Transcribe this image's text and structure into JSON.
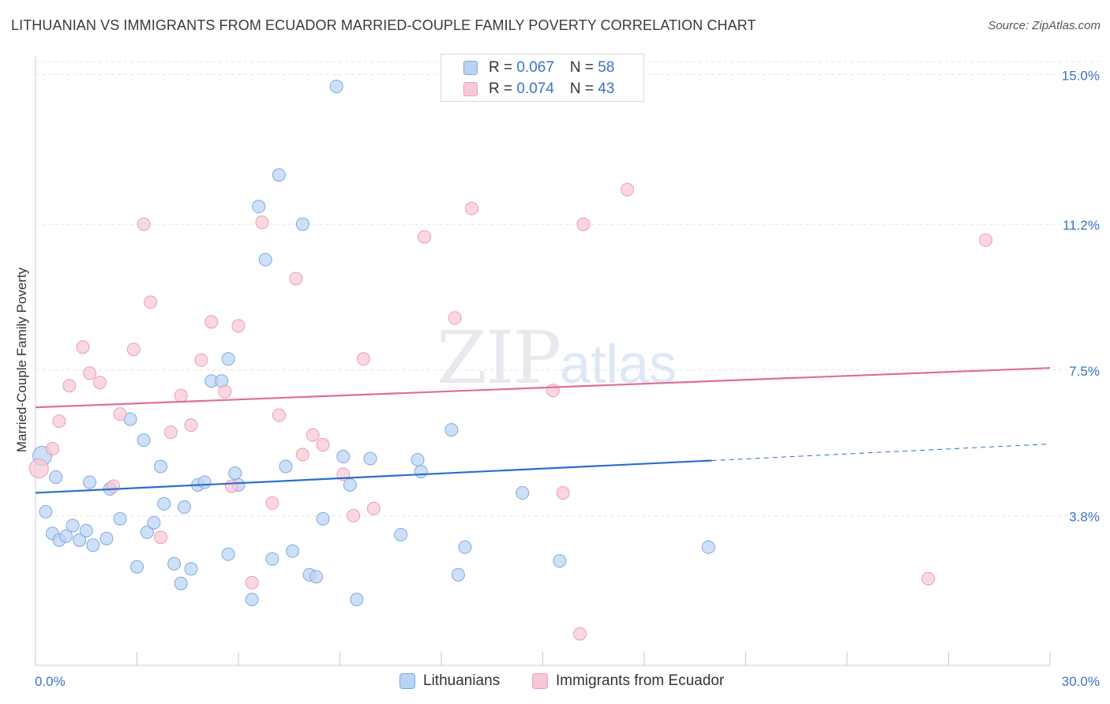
{
  "title": "LITHUANIAN VS IMMIGRANTS FROM ECUADOR MARRIED-COUPLE FAMILY POVERTY CORRELATION CHART",
  "source": "Source: ZipAtlas.com",
  "watermark": {
    "zip": "ZIP",
    "atlas": "atlas"
  },
  "legend": {
    "r_label": "R = ",
    "n_label": "N = ",
    "rows": [
      {
        "r": "0.067",
        "n": "58"
      },
      {
        "r": "0.074",
        "n": "43"
      }
    ]
  },
  "colors": {
    "blue_fill": "#b9d3f3",
    "blue_stroke": "#7fa9e0",
    "blue_line": "#2c6ecb",
    "pink_fill": "#f8c8d6",
    "pink_stroke": "#ee9bb4",
    "pink_line": "#e06e95",
    "tick_text": "#3b73c6",
    "grid": "#dfe3ea"
  },
  "chart_data": {
    "type": "scatter",
    "title": "LITHUANIAN VS IMMIGRANTS FROM ECUADOR MARRIED-COUPLE FAMILY POVERTY CORRELATION CHART",
    "xlabel": "",
    "ylabel": "Married-Couple Family Poverty",
    "xlim": [
      0,
      30
    ],
    "ylim": [
      0,
      15.5
    ],
    "x_tick_labels": [
      {
        "value": 0,
        "label": "0.0%"
      },
      {
        "value": 30,
        "label": "30.0%"
      }
    ],
    "y_tick_labels": [
      {
        "value": 3.8,
        "label": "3.8%"
      },
      {
        "value": 7.5,
        "label": "7.5%"
      },
      {
        "value": 11.2,
        "label": "11.2%"
      },
      {
        "value": 15.0,
        "label": "15.0%"
      }
    ],
    "x_minor_ticks": [
      0,
      3,
      6,
      9,
      12,
      15,
      18,
      21,
      24,
      27,
      30
    ],
    "series": [
      {
        "name": "Lithuanians",
        "color": "blue",
        "trend": {
          "x0": 0,
          "y0": 4.38,
          "x1": 20,
          "y1": 5.2,
          "dash_to_x": 30,
          "dash_to_y": 5.62
        },
        "points": [
          [
            0.2,
            5.32,
            22
          ],
          [
            0.3,
            3.9,
            11
          ],
          [
            0.5,
            3.35,
            9
          ],
          [
            0.7,
            3.18,
            8
          ],
          [
            0.9,
            3.28,
            8
          ],
          [
            1.1,
            3.55,
            8
          ],
          [
            1.3,
            3.18,
            8
          ],
          [
            1.5,
            3.42,
            8
          ],
          [
            1.7,
            3.05,
            8
          ],
          [
            1.6,
            4.65,
            8
          ],
          [
            2.2,
            4.48,
            8
          ],
          [
            2.1,
            3.22,
            8
          ],
          [
            2.5,
            3.72,
            8
          ],
          [
            2.8,
            6.25,
            8
          ],
          [
            3.0,
            2.5,
            8
          ],
          [
            3.2,
            5.72,
            8
          ],
          [
            3.3,
            3.38,
            8
          ],
          [
            3.5,
            3.62,
            8
          ],
          [
            3.7,
            5.05,
            8
          ],
          [
            3.8,
            4.1,
            8
          ],
          [
            4.1,
            2.58,
            8
          ],
          [
            4.3,
            2.08,
            8
          ],
          [
            4.4,
            4.02,
            8
          ],
          [
            4.6,
            2.45,
            8
          ],
          [
            4.8,
            4.58,
            8
          ],
          [
            5.0,
            4.65,
            8
          ],
          [
            5.2,
            7.22,
            8
          ],
          [
            5.5,
            7.22,
            8
          ],
          [
            5.7,
            7.78,
            8
          ],
          [
            5.7,
            2.82,
            8
          ],
          [
            5.9,
            4.88,
            8
          ],
          [
            6.0,
            4.58,
            8
          ],
          [
            6.4,
            1.67,
            8
          ],
          [
            6.6,
            11.65,
            8
          ],
          [
            6.8,
            10.3,
            8
          ],
          [
            7.0,
            2.7,
            8
          ],
          [
            7.2,
            12.45,
            8
          ],
          [
            7.4,
            5.05,
            8
          ],
          [
            7.6,
            2.9,
            8
          ],
          [
            7.9,
            11.2,
            8
          ],
          [
            8.1,
            2.3,
            8
          ],
          [
            8.3,
            2.25,
            8
          ],
          [
            8.5,
            3.72,
            8
          ],
          [
            8.9,
            14.7,
            8
          ],
          [
            9.1,
            5.3,
            8
          ],
          [
            9.3,
            4.58,
            8
          ],
          [
            9.5,
            1.67,
            8
          ],
          [
            9.9,
            5.25,
            8
          ],
          [
            10.8,
            3.32,
            8
          ],
          [
            11.3,
            5.22,
            8
          ],
          [
            11.4,
            4.92,
            8
          ],
          [
            12.3,
            5.98,
            8
          ],
          [
            12.5,
            2.3,
            8
          ],
          [
            12.7,
            3.0,
            8
          ],
          [
            14.4,
            4.38,
            8
          ],
          [
            15.5,
            2.65,
            8
          ],
          [
            19.9,
            3.0,
            8
          ],
          [
            0.6,
            4.78,
            8
          ]
        ]
      },
      {
        "name": "Immigrants from Ecuador",
        "color": "pink",
        "trend": {
          "x0": 0,
          "y0": 6.55,
          "x1": 30,
          "y1": 7.55
        },
        "points": [
          [
            0.1,
            5.0,
            22
          ],
          [
            0.5,
            5.5,
            8
          ],
          [
            0.7,
            6.2,
            8
          ],
          [
            1.0,
            7.1,
            8
          ],
          [
            1.4,
            8.08,
            8
          ],
          [
            1.6,
            7.42,
            8
          ],
          [
            1.9,
            7.18,
            8
          ],
          [
            2.3,
            4.55,
            8
          ],
          [
            2.5,
            6.38,
            8
          ],
          [
            2.9,
            8.02,
            8
          ],
          [
            3.2,
            11.2,
            8
          ],
          [
            3.4,
            9.22,
            8
          ],
          [
            3.7,
            3.25,
            8
          ],
          [
            4.0,
            5.92,
            8
          ],
          [
            4.3,
            6.85,
            8
          ],
          [
            4.6,
            6.1,
            8
          ],
          [
            4.9,
            7.75,
            8
          ],
          [
            5.2,
            8.72,
            8
          ],
          [
            5.6,
            6.95,
            8
          ],
          [
            5.8,
            4.55,
            8
          ],
          [
            6.0,
            8.62,
            8
          ],
          [
            6.4,
            2.1,
            8
          ],
          [
            6.7,
            11.25,
            8
          ],
          [
            7.0,
            4.12,
            8
          ],
          [
            7.2,
            6.35,
            8
          ],
          [
            7.7,
            9.82,
            8
          ],
          [
            7.9,
            5.35,
            8
          ],
          [
            8.2,
            5.85,
            8
          ],
          [
            8.5,
            5.6,
            8
          ],
          [
            9.1,
            4.85,
            8
          ],
          [
            9.4,
            3.8,
            8
          ],
          [
            9.7,
            7.78,
            8
          ],
          [
            10.0,
            3.98,
            8
          ],
          [
            11.5,
            10.88,
            8
          ],
          [
            12.4,
            8.82,
            8
          ],
          [
            12.9,
            11.6,
            8
          ],
          [
            15.3,
            6.98,
            8
          ],
          [
            15.6,
            4.38,
            8
          ],
          [
            16.1,
            0.8,
            8
          ],
          [
            16.2,
            11.2,
            8
          ],
          [
            17.5,
            12.08,
            8
          ],
          [
            26.4,
            2.2,
            8
          ],
          [
            28.1,
            10.8,
            8
          ]
        ]
      }
    ]
  },
  "bottom_legend": [
    {
      "label": "Lithuanians"
    },
    {
      "label": "Immigrants from Ecuador"
    }
  ]
}
